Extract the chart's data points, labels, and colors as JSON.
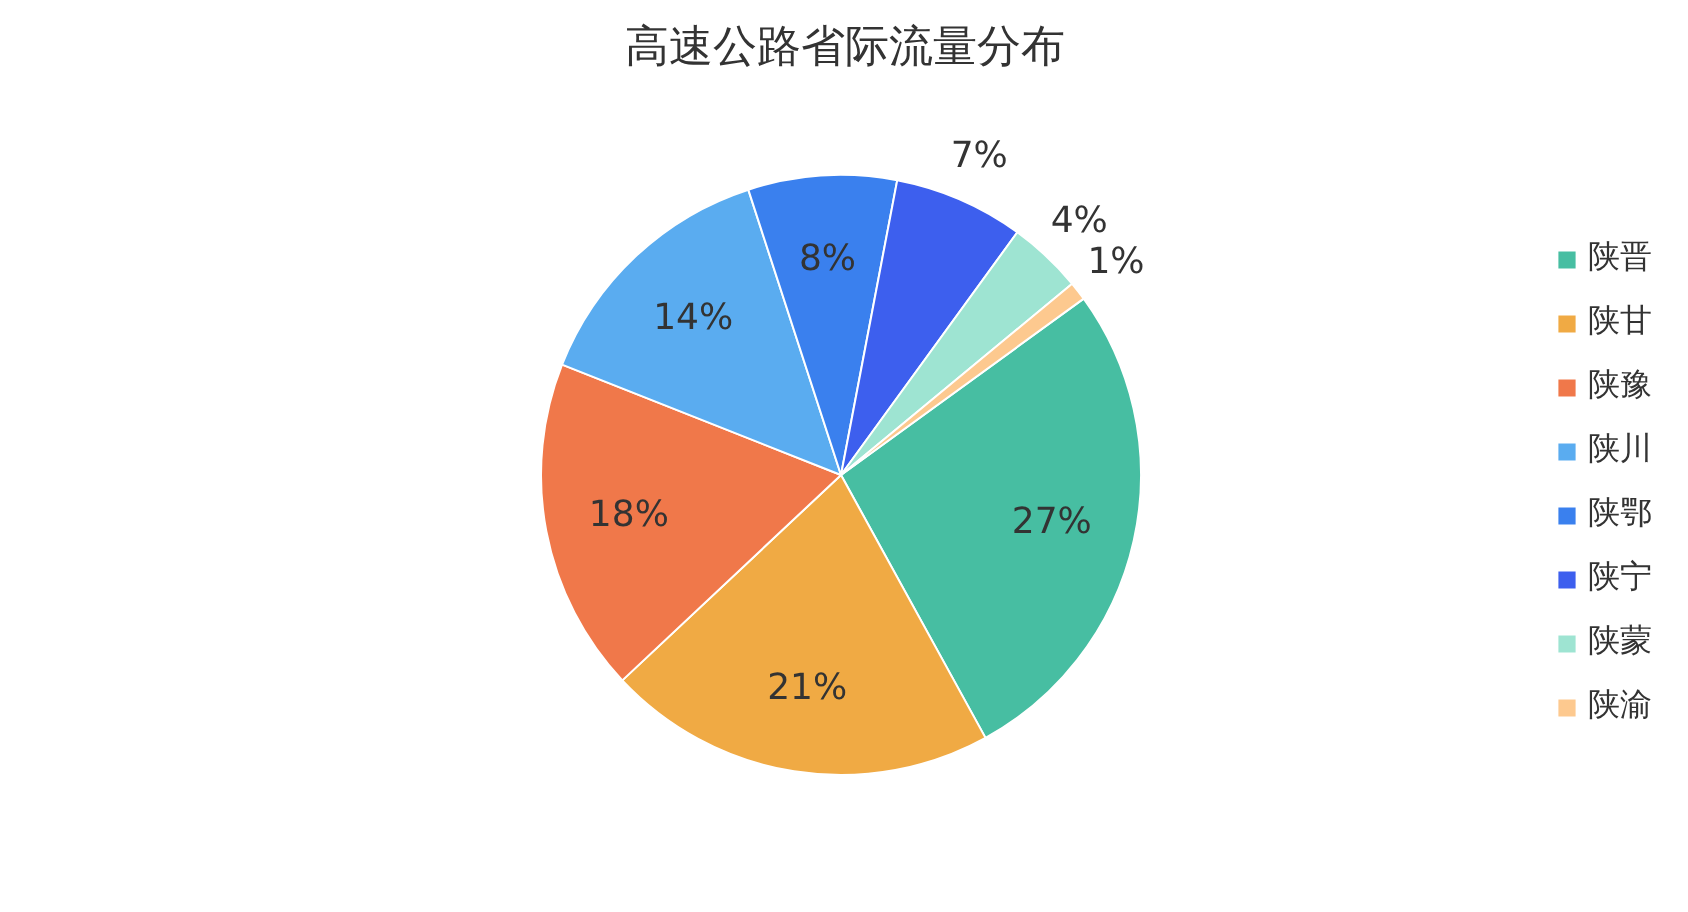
{
  "chart_data": {
    "type": "pie",
    "title": "高速公路省际流量分布",
    "categories": [
      "陕晋",
      "陕甘",
      "陕豫",
      "陕川",
      "陕鄂",
      "陕宁",
      "陕蒙",
      "陕渝"
    ],
    "values": [
      27,
      21,
      18,
      14,
      8,
      7,
      4,
      1
    ],
    "value_labels": [
      "27%",
      "21%",
      "18%",
      "14%",
      "8%",
      "7%",
      "4%",
      "1%"
    ],
    "colors": [
      "#47bea2",
      "#f0aa44",
      "#f0784a",
      "#5aacf0",
      "#3a80ee",
      "#3d5fee",
      "#9ee4d2",
      "#fdc98f"
    ],
    "legend": "right"
  }
}
